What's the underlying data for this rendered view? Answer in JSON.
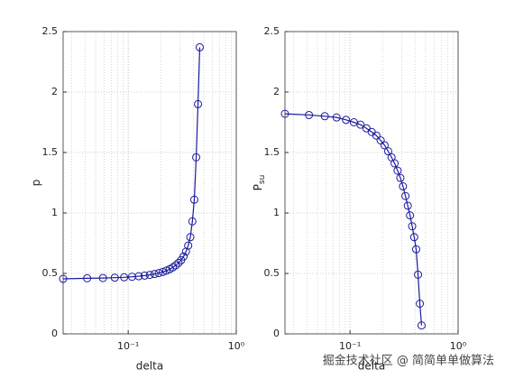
{
  "chart_data": [
    {
      "type": "line",
      "xlabel": "delta",
      "ylabel": {
        "base": "p"
      },
      "x": [
        0.025,
        0.0417,
        0.0584,
        0.0751,
        0.0918,
        0.1085,
        0.1252,
        0.1419,
        0.1586,
        0.1753,
        0.192,
        0.2087,
        0.2254,
        0.2421,
        0.2588,
        0.2755,
        0.2922,
        0.3089,
        0.3256,
        0.3423,
        0.359,
        0.3757,
        0.3924,
        0.4091,
        0.4258,
        0.4425,
        0.4592
      ],
      "series": [
        {
          "color": "#1a1a9c",
          "values": [
            0.455,
            0.46,
            0.462,
            0.465,
            0.468,
            0.472,
            0.477,
            0.482,
            0.488,
            0.495,
            0.503,
            0.512,
            0.523,
            0.535,
            0.55,
            0.567,
            0.587,
            0.61,
            0.64,
            0.68,
            0.73,
            0.8,
            0.93,
            1.11,
            1.46,
            1.9,
            2.37
          ]
        }
      ],
      "xscale": "log",
      "xlim": [
        0.025,
        1
      ],
      "xticks": [
        {
          "value": 0.1,
          "label": "10⁻¹"
        },
        {
          "value": 1,
          "label": "10⁰"
        }
      ],
      "ylim": [
        0,
        2.5
      ],
      "yticks": [
        0,
        0.5,
        1,
        1.5,
        2,
        2.5
      ],
      "grid": true
    },
    {
      "type": "line",
      "xlabel": "delta",
      "ylabel": {
        "base": "P",
        "subscript": "su"
      },
      "x": [
        0.025,
        0.0417,
        0.0584,
        0.0751,
        0.0918,
        0.1085,
        0.1252,
        0.1419,
        0.1586,
        0.1753,
        0.192,
        0.2087,
        0.2254,
        0.2421,
        0.2588,
        0.2755,
        0.2922,
        0.3089,
        0.3256,
        0.3423,
        0.359,
        0.3757,
        0.3924,
        0.4091,
        0.4258,
        0.4425,
        0.4592
      ],
      "series": [
        {
          "color": "#1a1a9c",
          "values": [
            1.82,
            1.81,
            1.8,
            1.79,
            1.77,
            1.75,
            1.73,
            1.7,
            1.67,
            1.64,
            1.6,
            1.56,
            1.51,
            1.46,
            1.41,
            1.35,
            1.29,
            1.22,
            1.14,
            1.06,
            0.98,
            0.89,
            0.8,
            0.7,
            0.49,
            0.25,
            0.07
          ]
        }
      ],
      "xscale": "log",
      "xlim": [
        0.025,
        1
      ],
      "xticks": [
        {
          "value": 0.1,
          "label": "10⁻¹"
        },
        {
          "value": 1,
          "label": "10⁰"
        }
      ],
      "ylim": [
        0,
        2.5
      ],
      "yticks": [
        0,
        0.5,
        1,
        1.5,
        2,
        2.5
      ],
      "grid": true
    }
  ],
  "watermark": "掘金技术社区 @ 简简单单做算法"
}
